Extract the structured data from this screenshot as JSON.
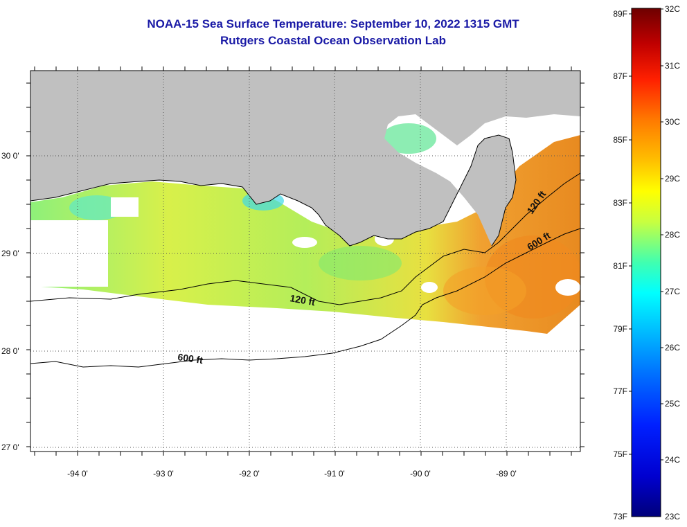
{
  "title": "NOAA-15 Sea Surface Temperature:  September 10, 2022 1315 GMT",
  "subtitle": "Rutgers Coastal Ocean Observation Lab",
  "map": {
    "lon_labels": [
      "-94 0'",
      "-93 0'",
      "-92 0'",
      "-91 0'",
      "-90 0'",
      "-89 0'"
    ],
    "lat_labels": [
      "30 0'",
      "29 0'",
      "28 0'",
      "27 0'"
    ],
    "contour_labels": [
      "120 ft",
      "120 ft",
      "600 ft",
      "600 ft"
    ]
  },
  "colorbar": {
    "fahrenheit_labels": [
      "89F",
      "87F",
      "85F",
      "83F",
      "81F",
      "79F",
      "77F",
      "75F",
      "73F"
    ],
    "celsius_labels": [
      "32C",
      "31C",
      "30C",
      "29C",
      "28C",
      "27C",
      "26C",
      "25C",
      "24C",
      "23C"
    ],
    "colors": [
      "#7a0000",
      "#b30000",
      "#e60000",
      "#ff3300",
      "#ff6600",
      "#ff9900",
      "#ffcc00",
      "#ffff00",
      "#ccff33",
      "#66ff99",
      "#00ffff",
      "#00ccff",
      "#0099ff",
      "#0055ff",
      "#0000ff",
      "#0000a0"
    ]
  },
  "colors": {
    "land": "#c0c0c0",
    "no_data": "#ffffff",
    "title": "#1a1aa6"
  }
}
